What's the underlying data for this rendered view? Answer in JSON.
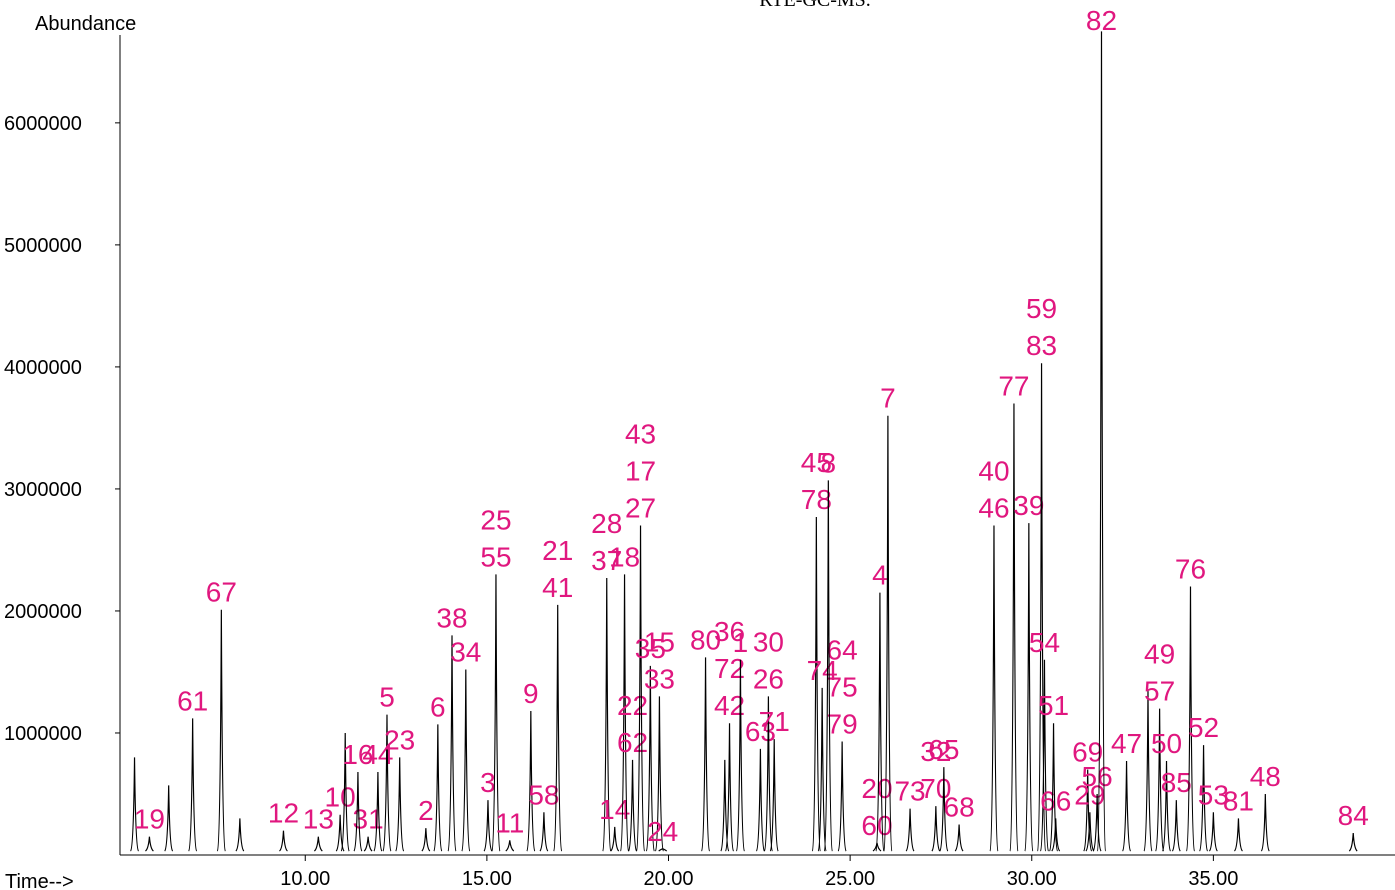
{
  "chart_data": {
    "type": "chromatogram",
    "title": "RTE-GC-MS.",
    "y_label": "Abundance",
    "x_label": "Time-->",
    "xlim": [
      4.9,
      40
    ],
    "ylim": [
      0,
      6720000
    ],
    "xticks": [
      {
        "value": 10,
        "label": "10.00"
      },
      {
        "value": 15,
        "label": "15.00"
      },
      {
        "value": 20,
        "label": "20.00"
      },
      {
        "value": 25,
        "label": "25.00"
      },
      {
        "value": 30,
        "label": "30.00"
      },
      {
        "value": 35,
        "label": "35.00"
      }
    ],
    "yticks": [
      1000000,
      2000000,
      3000000,
      4000000,
      5000000,
      6000000
    ],
    "trace_color": "#000000",
    "label_color": "#e0177f",
    "peaks": [
      {
        "labels": [],
        "x": 5.3,
        "y": 800000
      },
      {
        "labels": [],
        "x": 6.24,
        "y": 570000
      },
      {
        "labels": [
          "19"
        ],
        "x": 5.71,
        "y": 150000
      },
      {
        "labels": [
          "61"
        ],
        "x": 6.9,
        "y": 1120000
      },
      {
        "labels": [
          "67"
        ],
        "x": 7.69,
        "y": 2010000
      },
      {
        "labels": [],
        "x": 8.2,
        "y": 300000
      },
      {
        "labels": [
          "12"
        ],
        "x": 9.4,
        "y": 200000
      },
      {
        "labels": [
          "13"
        ],
        "x": 10.36,
        "y": 150000
      },
      {
        "labels": [
          "10"
        ],
        "x": 10.96,
        "y": 330000
      },
      {
        "labels": [],
        "x": 11.1,
        "y": 1000000
      },
      {
        "labels": [
          "31"
        ],
        "x": 11.73,
        "y": 150000
      },
      {
        "labels": [
          "16"
        ],
        "x": 11.45,
        "y": 680000
      },
      {
        "labels": [
          "44"
        ],
        "x": 12.0,
        "y": 680000
      },
      {
        "labels": [
          "5"
        ],
        "x": 12.25,
        "y": 1150000
      },
      {
        "labels": [
          "23"
        ],
        "x": 12.6,
        "y": 800000
      },
      {
        "labels": [
          "2"
        ],
        "x": 13.32,
        "y": 220000
      },
      {
        "labels": [
          "6"
        ],
        "x": 13.65,
        "y": 1070000
      },
      {
        "labels": [
          "38"
        ],
        "x": 14.04,
        "y": 1800000
      },
      {
        "labels": [
          "34"
        ],
        "x": 14.42,
        "y": 1520000
      },
      {
        "labels": [
          "3"
        ],
        "x": 15.03,
        "y": 450000
      },
      {
        "labels": [
          "25",
          "55"
        ],
        "x": 15.25,
        "y": 2300000
      },
      {
        "labels": [
          "11"
        ],
        "x": 15.63,
        "y": 120000
      },
      {
        "labels": [
          "9"
        ],
        "x": 16.21,
        "y": 1180000
      },
      {
        "labels": [
          "58"
        ],
        "x": 16.57,
        "y": 350000
      },
      {
        "labels": [
          "21",
          "41"
        ],
        "x": 16.95,
        "y": 2050000
      },
      {
        "labels": [
          "28",
          "37"
        ],
        "x": 18.3,
        "y": 2270000
      },
      {
        "labels": [
          "14"
        ],
        "x": 18.52,
        "y": 230000
      },
      {
        "labels": [
          "18"
        ],
        "x": 18.79,
        "y": 2300000
      },
      {
        "labels": [
          "22",
          "62"
        ],
        "x": 19.01,
        "y": 780000
      },
      {
        "labels": [
          "43",
          "17",
          "27"
        ],
        "x": 19.23,
        "y": 2700000
      },
      {
        "labels": [
          "35"
        ],
        "x": 19.5,
        "y": 1550000
      },
      {
        "labels": [
          "15",
          "33"
        ],
        "x": 19.75,
        "y": 1300000
      },
      {
        "labels": [
          "24"
        ],
        "x": 19.84,
        "y": 50000
      },
      {
        "labels": [
          "80"
        ],
        "x": 21.02,
        "y": 1620000
      },
      {
        "labels": [],
        "x": 21.55,
        "y": 780000
      },
      {
        "labels": [
          "36",
          "72",
          "42"
        ],
        "x": 21.68,
        "y": 1080000
      },
      {
        "labels": [
          "1"
        ],
        "x": 21.98,
        "y": 1600000
      },
      {
        "labels": [
          "63"
        ],
        "x": 22.53,
        "y": 870000
      },
      {
        "labels": [
          "30",
          "26"
        ],
        "x": 22.75,
        "y": 1300000
      },
      {
        "labels": [
          "71"
        ],
        "x": 22.91,
        "y": 950000
      },
      {
        "labels": [
          "45",
          "78"
        ],
        "x": 24.07,
        "y": 2770000
      },
      {
        "labels": [
          "74"
        ],
        "x": 24.23,
        "y": 1370000
      },
      {
        "labels": [
          "64",
          "75",
          "79"
        ],
        "x": 24.78,
        "y": 930000
      },
      {
        "labels": [
          "8"
        ],
        "x": 24.4,
        "y": 3070000
      },
      {
        "labels": [
          "20",
          "60"
        ],
        "x": 25.74,
        "y": 100000
      },
      {
        "labels": [
          "4"
        ],
        "x": 25.82,
        "y": 2150000
      },
      {
        "labels": [
          "7"
        ],
        "x": 26.04,
        "y": 3600000
      },
      {
        "labels": [
          "73"
        ],
        "x": 26.65,
        "y": 380000
      },
      {
        "labels": [
          "32",
          "70"
        ],
        "x": 27.36,
        "y": 400000
      },
      {
        "labels": [
          "65"
        ],
        "x": 27.58,
        "y": 720000
      },
      {
        "labels": [
          "68"
        ],
        "x": 28.0,
        "y": 250000
      },
      {
        "labels": [
          "40",
          "46"
        ],
        "x": 28.96,
        "y": 2700000
      },
      {
        "labels": [
          "77"
        ],
        "x": 29.51,
        "y": 3700000
      },
      {
        "labels": [
          "39"
        ],
        "x": 29.92,
        "y": 2720000
      },
      {
        "labels": [
          "59",
          "83"
        ],
        "x": 30.27,
        "y": 4030000
      },
      {
        "labels": [
          "54"
        ],
        "x": 30.35,
        "y": 1600000
      },
      {
        "labels": [
          "66"
        ],
        "x": 30.66,
        "y": 300000
      },
      {
        "labels": [
          "51"
        ],
        "x": 30.6,
        "y": 1080000
      },
      {
        "labels": [
          "69"
        ],
        "x": 31.54,
        "y": 700000
      },
      {
        "labels": [
          "29"
        ],
        "x": 31.6,
        "y": 350000
      },
      {
        "labels": [
          "56"
        ],
        "x": 31.8,
        "y": 500000
      },
      {
        "labels": [
          "82"
        ],
        "x": 31.92,
        "y": 6750000
      },
      {
        "labels": [
          "47"
        ],
        "x": 32.61,
        "y": 770000
      },
      {
        "labels": [],
        "x": 33.2,
        "y": 1350000
      },
      {
        "labels": [
          "49",
          "57"
        ],
        "x": 33.52,
        "y": 1200000
      },
      {
        "labels": [
          "50"
        ],
        "x": 33.71,
        "y": 770000
      },
      {
        "labels": [
          "85"
        ],
        "x": 33.98,
        "y": 450000
      },
      {
        "labels": [
          "76"
        ],
        "x": 34.37,
        "y": 2200000
      },
      {
        "labels": [
          "52"
        ],
        "x": 34.73,
        "y": 900000
      },
      {
        "labels": [
          "53"
        ],
        "x": 35.0,
        "y": 350000
      },
      {
        "labels": [
          "81"
        ],
        "x": 35.69,
        "y": 300000
      },
      {
        "labels": [
          "48"
        ],
        "x": 36.43,
        "y": 500000
      },
      {
        "labels": [
          "84"
        ],
        "x": 38.85,
        "y": 180000
      }
    ]
  }
}
